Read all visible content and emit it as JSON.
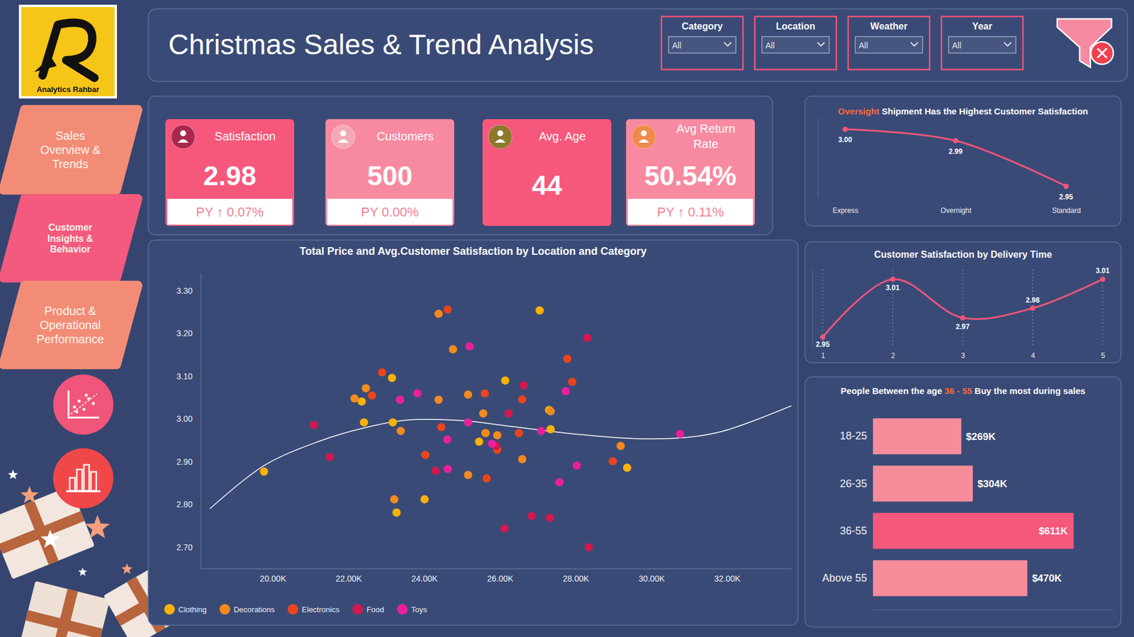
{
  "logo": {
    "text": "Analytics Rahbar"
  },
  "header": {
    "title": "Christmas Sales & Trend Analysis"
  },
  "nav": [
    {
      "label": "Sales Overview & Trends"
    },
    {
      "label": "Customer Insights & Behavior"
    },
    {
      "label": "Product & Operational Performance"
    }
  ],
  "filters": [
    {
      "label": "Category",
      "value": "All"
    },
    {
      "label": "Location",
      "value": "All"
    },
    {
      "label": "Weather",
      "value": "All"
    },
    {
      "label": "Year",
      "value": "All"
    }
  ],
  "kpis": [
    {
      "title": "Satisfaction",
      "value": "2.98",
      "py": "PY ↑ 0.07%"
    },
    {
      "title": "Customers",
      "value": "500",
      "py": "PY 0.00%"
    },
    {
      "title": "Avg. Age",
      "value": "44"
    },
    {
      "title": "Avg Return Rate",
      "value": "50.54%",
      "py": "PY ↑ 0.11%"
    }
  ],
  "chart_data": [
    {
      "type": "scatter",
      "title": "Total Price and Avg.Customer Satisfaction by Location and Category",
      "xlim": [
        18100,
        33700
      ],
      "xticks": [
        {
          "value": 20000,
          "label": "20.00K"
        },
        {
          "value": 22000,
          "label": "22.00K"
        },
        {
          "value": 24000,
          "label": "24.00K"
        },
        {
          "value": 26000,
          "label": "26.00K"
        },
        {
          "value": 28000,
          "label": "28.00K"
        },
        {
          "value": 30000,
          "label": "30.00K"
        },
        {
          "value": 32000,
          "label": "32.00K"
        }
      ],
      "ylim": [
        2.65,
        3.34
      ],
      "yticks": [
        {
          "value": 2.7,
          "label": "2.70"
        },
        {
          "value": 2.8,
          "label": "2.80"
        },
        {
          "value": 2.9,
          "label": "2.90"
        },
        {
          "value": 3,
          "label": "3.00"
        },
        {
          "value": 3.1,
          "label": "3.10"
        },
        {
          "value": 3.2,
          "label": "3.20"
        },
        {
          "value": 3.3,
          "label": "3.30"
        }
      ],
      "legend": "bottom-left",
      "marker": "circle",
      "series": [
        {
          "name": "Clothing",
          "color": "#f9b208",
          "x": [
            19770,
            23150,
            22350,
            22410,
            23170,
            23270,
            24010,
            26140,
            25450,
            27050,
            27300,
            27340,
            29360
          ],
          "values": [
            2.877,
            3.096,
            3.041,
            2.992,
            2.992,
            2.781,
            2.812,
            3.09,
            2.947,
            3.254,
            3.021,
            2.976,
            2.886
          ]
        },
        {
          "name": "Decorations",
          "color": "#f28a1e",
          "x": [
            22160,
            22460,
            23380,
            24380,
            24760,
            24380,
            25160,
            23210,
            25160,
            25560,
            25620,
            25930,
            26590,
            27340,
            29190
          ],
          "values": [
            3.048,
            3.072,
            2.972,
            3.246,
            3.163,
            3.045,
            3.057,
            2.812,
            2.869,
            3.013,
            2.967,
            2.962,
            2.906,
            3.018,
            2.937
          ]
        },
        {
          "name": "Electronics",
          "color": "#e8451e",
          "x": [
            22890,
            22620,
            24620,
            24450,
            24030,
            25650,
            25600,
            26590,
            25930,
            26500,
            27780,
            27910,
            28980
          ],
          "values": [
            3.109,
            3.055,
            3.256,
            2.981,
            2.916,
            2.861,
            3.06,
            3.046,
            2.928,
            2.967,
            3.141,
            3.087,
            2.901
          ]
        },
        {
          "name": "Food",
          "color": "#d41850",
          "x": [
            21090,
            21510,
            24300,
            26630,
            26230,
            25900,
            28310,
            26840,
            27320,
            26120,
            28350
          ],
          "values": [
            2.986,
            2.911,
            2.879,
            3.079,
            3.013,
            2.937,
            3.19,
            2.773,
            2.769,
            2.744,
            2.7
          ]
        },
        {
          "name": "Toys",
          "color": "#e9209b",
          "x": [
            23360,
            23820,
            25200,
            24610,
            24620,
            25160,
            25790,
            27090,
            27740,
            28030,
            27570,
            30760
          ],
          "values": [
            3.045,
            3.06,
            3.17,
            2.952,
            2.883,
            2.992,
            2.942,
            2.972,
            3.065,
            2.891,
            2.852,
            2.965
          ]
        }
      ],
      "trend_line": {
        "color": "#ffffff",
        "x": [
          18340,
          19770,
          21200,
          22410,
          23500,
          25030,
          26170,
          28080,
          29610,
          30950,
          31910,
          33700
        ],
        "values": [
          2.79,
          2.891,
          2.947,
          2.979,
          2.997,
          2.996,
          2.984,
          2.964,
          2.954,
          2.957,
          2.972,
          3.031
        ]
      }
    },
    {
      "type": "line",
      "title": "Oversight Shipment Has the Highest Customer Satisfaction",
      "highlight": "Oversight",
      "categories": [
        "Express",
        "Overnight",
        "Standard"
      ],
      "values": [
        3,
        2.99,
        2.95
      ],
      "value_labels": [
        "3.00",
        "2.99",
        "2.95"
      ],
      "data_labels": true,
      "ylim": [
        2.94,
        3.01
      ],
      "tick_labels": "x",
      "color": "#f0557a",
      "marker": "circle",
      "line_style": "solid"
    },
    {
      "type": "line",
      "title": "Customer Satisfaction by Delivery Time",
      "categories": [
        "1",
        "2",
        "3",
        "4",
        "5"
      ],
      "values": [
        2.95,
        3.01,
        2.97,
        2.98,
        3.01
      ],
      "value_labels": [
        "2.95",
        "3.01",
        "2.97",
        "2.98",
        "3.01"
      ],
      "data_labels": true,
      "ylim": [
        2.94,
        3.02
      ],
      "tick_labels": "x",
      "grid": true,
      "color": "#f0557a",
      "marker": "circle",
      "line_style": "solid"
    },
    {
      "type": "bar",
      "orientation": "horizontal",
      "title": "People Between the age 36 - 55 Buy the most during sales",
      "highlight": "36 - 55",
      "categories": [
        "18-25",
        "26-35",
        "36-55",
        "Above 55"
      ],
      "values": [
        269000,
        304000,
        611000,
        470000
      ],
      "value_labels": [
        "$269K",
        "$304K",
        "$611K",
        "$470K"
      ],
      "colors": [
        "#f78d9b",
        "#f78d9b",
        "#f4587a",
        "#f78d9b"
      ],
      "xlim": [
        0,
        730000
      ],
      "data_labels": true,
      "tick_labels": "y"
    }
  ]
}
